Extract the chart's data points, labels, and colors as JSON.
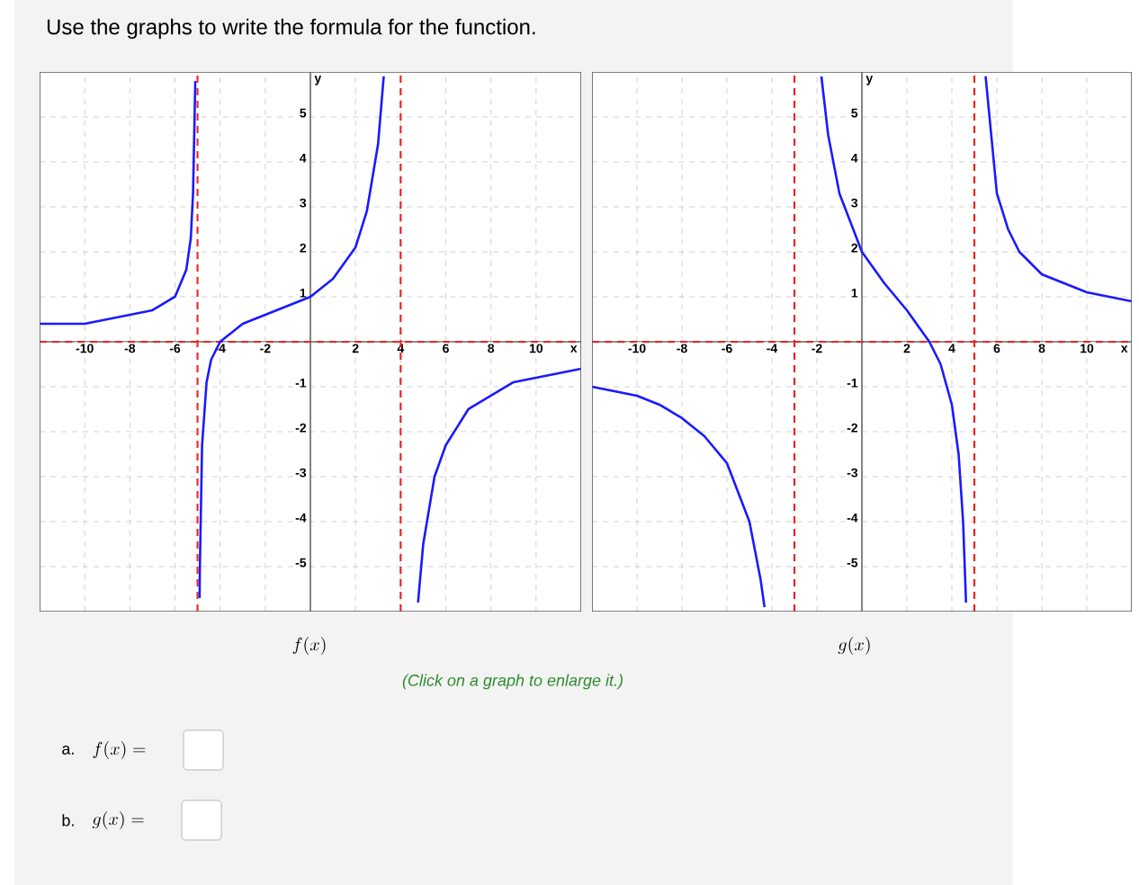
{
  "chart_data": [
    {
      "type": "line",
      "title": "Use the graphs to write the formula for the function.",
      "xlabel": "x",
      "ylabel": "y",
      "xlim": [
        -12,
        12
      ],
      "ylim": [
        -6,
        6
      ],
      "xticks": [
        -10,
        -8,
        -6,
        -4,
        -2,
        2,
        4,
        6,
        8,
        10
      ],
      "yticks": [
        -5,
        -4,
        -3,
        -2,
        -1,
        1,
        2,
        3,
        4,
        5
      ],
      "grid": true,
      "marker": "none",
      "line_style": "solid",
      "series": [
        {
          "color": "#1a1aff",
          "x": [
            -12,
            -11,
            -10,
            -9,
            -8,
            -7,
            -6,
            -5.5,
            -5.3,
            -5.2,
            -5.1,
            -5,
            -4.91,
            -4.9,
            -4.8,
            -4.6,
            -4.4,
            -4,
            -3,
            -2,
            -1,
            0,
            1,
            2,
            2.5,
            3,
            3.25,
            4,
            4.77,
            5,
            5.5,
            6,
            7,
            8,
            9,
            10,
            11,
            12
          ],
          "values": [
            0.4,
            0.4,
            0.4,
            0.5,
            0.6,
            0.7,
            1.0,
            1.6,
            2.3,
            3.3,
            5.8,
            null,
            -5.7,
            -5.1,
            -2.3,
            -0.9,
            -0.4,
            0,
            0.4,
            0.6,
            0.8,
            1,
            1.4,
            2.1,
            2.9,
            4.4,
            5.9,
            null,
            -5.8,
            -4.5,
            -3.0,
            -2.3,
            -1.5,
            -1.2,
            -0.9,
            -0.8,
            -0.7,
            -0.6
          ]
        }
      ],
      "ref_lines": [
        {
          "axis": "x",
          "value": -5,
          "color": "#ee2222",
          "line_style": "dashed"
        },
        {
          "axis": "x",
          "value": 4,
          "color": "#ee2222",
          "line_style": "dashed"
        },
        {
          "axis": "y",
          "value": 0,
          "color": "#ee2222",
          "line_style": "dashed"
        }
      ],
      "annotations": [
        "f(x)",
        "(Click on a graph to enlarge it.)",
        "a.",
        "f(x) =",
        "b.",
        "g(x) ="
      ]
    },
    {
      "type": "line",
      "xlabel": "x",
      "ylabel": "y",
      "xlim": [
        -12,
        12
      ],
      "ylim": [
        -6,
        6
      ],
      "xticks": [
        -10,
        -8,
        -6,
        -4,
        -2,
        2,
        4,
        6,
        8,
        10
      ],
      "yticks": [
        -5,
        -4,
        -3,
        -2,
        -1,
        1,
        2,
        3,
        4,
        5
      ],
      "grid": true,
      "marker": "none",
      "line_style": "solid",
      "series": [
        {
          "color": "#1a1aff",
          "x": [
            -12,
            -11,
            -10,
            -9,
            -8,
            -7,
            -6,
            -5,
            -4.5,
            -4.33,
            -3,
            -1.8,
            -1.5,
            -1,
            0,
            1,
            2,
            3,
            3.5,
            4,
            4.3,
            4.5,
            4.63,
            5,
            5.5,
            6,
            6.5,
            7,
            8,
            9,
            10,
            11,
            12
          ],
          "values": [
            -1.0,
            -1.1,
            -1.2,
            -1.4,
            -1.7,
            -2.1,
            -2.7,
            -4.0,
            -5.3,
            -5.9,
            null,
            5.9,
            4.6,
            3.3,
            2,
            1.3,
            0.7,
            0,
            -0.5,
            -1.4,
            -2.5,
            -4.0,
            -5.8,
            null,
            5.9,
            3.3,
            2.5,
            2.0,
            1.5,
            1.3,
            1.1,
            1.0,
            0.9
          ]
        }
      ],
      "ref_lines": [
        {
          "axis": "x",
          "value": -3,
          "color": "#ee2222",
          "line_style": "dashed"
        },
        {
          "axis": "x",
          "value": 5,
          "color": "#ee2222",
          "line_style": "dashed"
        },
        {
          "axis": "y",
          "value": 0,
          "color": "#ee2222",
          "line_style": "dashed"
        }
      ],
      "annotations": [
        "g(x)"
      ]
    }
  ]
}
